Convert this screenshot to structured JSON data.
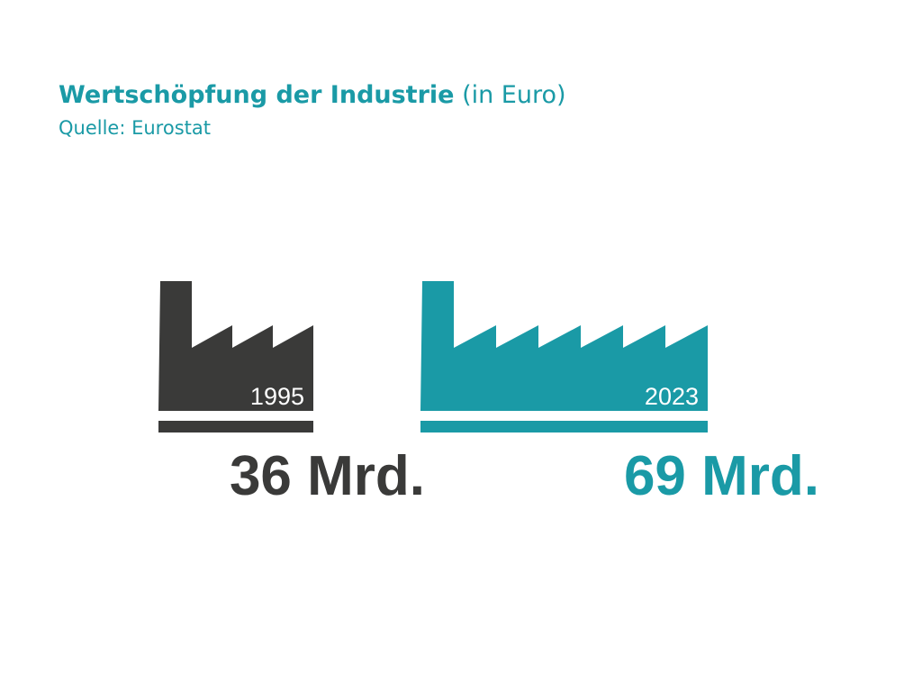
{
  "header": {
    "title_bold": "Wertschöpfung der Industrie",
    "title_normal": "(in Euro)",
    "source": "Quelle: Eurostat"
  },
  "colors": {
    "dark": "#3a3a39",
    "accent": "#1a9aa6"
  },
  "chart_data": {
    "type": "pictograph",
    "title": "Wertschöpfung der Industrie (in Euro)",
    "unit": "Mrd. Euro",
    "categories": [
      "1995",
      "2023"
    ],
    "values": [
      36,
      69
    ],
    "value_labels": [
      "36 Mrd.",
      "69 Mrd."
    ],
    "icon": "factory-icon"
  }
}
